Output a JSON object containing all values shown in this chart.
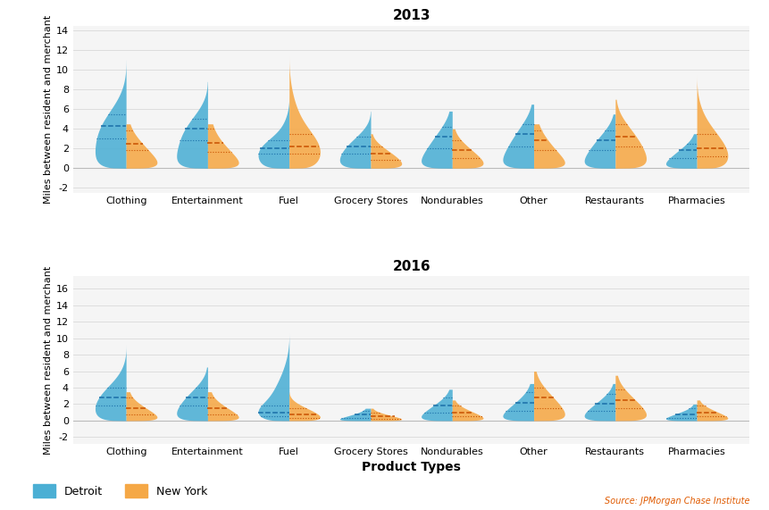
{
  "categories": [
    "Clothing",
    "Entertainment",
    "Fuel",
    "Grocery Stores",
    "Nondurables",
    "Other",
    "Restaurants",
    "Pharmacies"
  ],
  "year_titles": [
    "2013",
    "2016"
  ],
  "detroit_color": "#4BAFD4",
  "newyork_color": "#F5A846",
  "detroit_median_color": "#1A6EA8",
  "newyork_median_color": "#C85000",
  "ylabel": "Miles between resident and merchant",
  "xlabel": "Product Types",
  "legend_detroit": "Detroit",
  "legend_newyork": "New York",
  "source_text": "Source: JPMorgan Chase Institute",
  "background_color": "#FFFFFF",
  "data_2013": {
    "Clothing": {
      "detroit": [
        0,
        11.0,
        4.3,
        3.0,
        5.5
      ],
      "newyork": [
        0,
        4.5,
        2.5,
        1.8,
        3.8
      ]
    },
    "Entertainment": {
      "detroit": [
        0,
        8.8,
        4.0,
        2.8,
        5.0
      ],
      "newyork": [
        0,
        4.5,
        2.6,
        1.7,
        4.0
      ]
    },
    "Fuel": {
      "detroit": [
        0,
        7.5,
        2.0,
        1.5,
        2.8
      ],
      "newyork": [
        0,
        11.5,
        2.2,
        1.5,
        3.5
      ]
    },
    "Grocery Stores": {
      "detroit": [
        0,
        5.8,
        2.2,
        1.5,
        3.2
      ],
      "newyork": [
        0,
        3.5,
        1.5,
        0.8,
        2.2
      ]
    },
    "Nondurables": {
      "detroit": [
        0,
        5.8,
        3.2,
        2.0,
        4.2
      ],
      "newyork": [
        0,
        4.0,
        1.8,
        1.0,
        2.8
      ]
    },
    "Other": {
      "detroit": [
        0,
        6.5,
        3.5,
        2.2,
        4.5
      ],
      "newyork": [
        0,
        4.5,
        2.8,
        1.8,
        3.8
      ]
    },
    "Restaurants": {
      "detroit": [
        0,
        5.5,
        2.8,
        1.8,
        3.8
      ],
      "newyork": [
        0,
        7.0,
        3.2,
        2.2,
        4.5
      ]
    },
    "Pharmacies": {
      "detroit": [
        0,
        3.5,
        1.8,
        1.0,
        2.5
      ],
      "newyork": [
        0,
        9.5,
        2.0,
        1.2,
        3.5
      ]
    }
  },
  "data_2016": {
    "Clothing": {
      "detroit": [
        0,
        9.2,
        2.8,
        1.8,
        4.0
      ],
      "newyork": [
        0,
        3.5,
        1.5,
        0.8,
        2.8
      ]
    },
    "Entertainment": {
      "detroit": [
        0,
        6.5,
        2.8,
        1.8,
        4.0
      ],
      "newyork": [
        0,
        3.5,
        1.5,
        0.8,
        2.8
      ]
    },
    "Fuel": {
      "detroit": [
        0,
        10.8,
        1.0,
        0.5,
        1.8
      ],
      "newyork": [
        0,
        3.5,
        0.8,
        0.3,
        1.5
      ]
    },
    "Grocery Stores": {
      "detroit": [
        0,
        1.5,
        0.8,
        0.3,
        1.2
      ],
      "newyork": [
        0,
        1.5,
        0.5,
        0.2,
        1.0
      ]
    },
    "Nondurables": {
      "detroit": [
        0,
        3.8,
        1.8,
        1.0,
        2.8
      ],
      "newyork": [
        0,
        2.5,
        1.0,
        0.5,
        1.8
      ]
    },
    "Other": {
      "detroit": [
        0,
        4.5,
        2.2,
        1.2,
        3.5
      ],
      "newyork": [
        0,
        6.0,
        2.8,
        1.5,
        4.0
      ]
    },
    "Restaurants": {
      "detroit": [
        0,
        4.5,
        2.0,
        1.2,
        3.2
      ],
      "newyork": [
        0,
        5.5,
        2.5,
        1.5,
        3.8
      ]
    },
    "Pharmacies": {
      "detroit": [
        0,
        2.0,
        0.8,
        0.3,
        1.5
      ],
      "newyork": [
        0,
        2.5,
        1.0,
        0.5,
        1.8
      ]
    }
  },
  "ylim_2013": [
    -2.5,
    14.5
  ],
  "ylim_2016": [
    -2.8,
    17.5
  ],
  "yticks_2013": [
    -2,
    0,
    2,
    4,
    6,
    8,
    10,
    12,
    14
  ],
  "yticks_2016": [
    -2,
    0,
    2,
    4,
    6,
    8,
    10,
    12,
    14,
    16
  ]
}
